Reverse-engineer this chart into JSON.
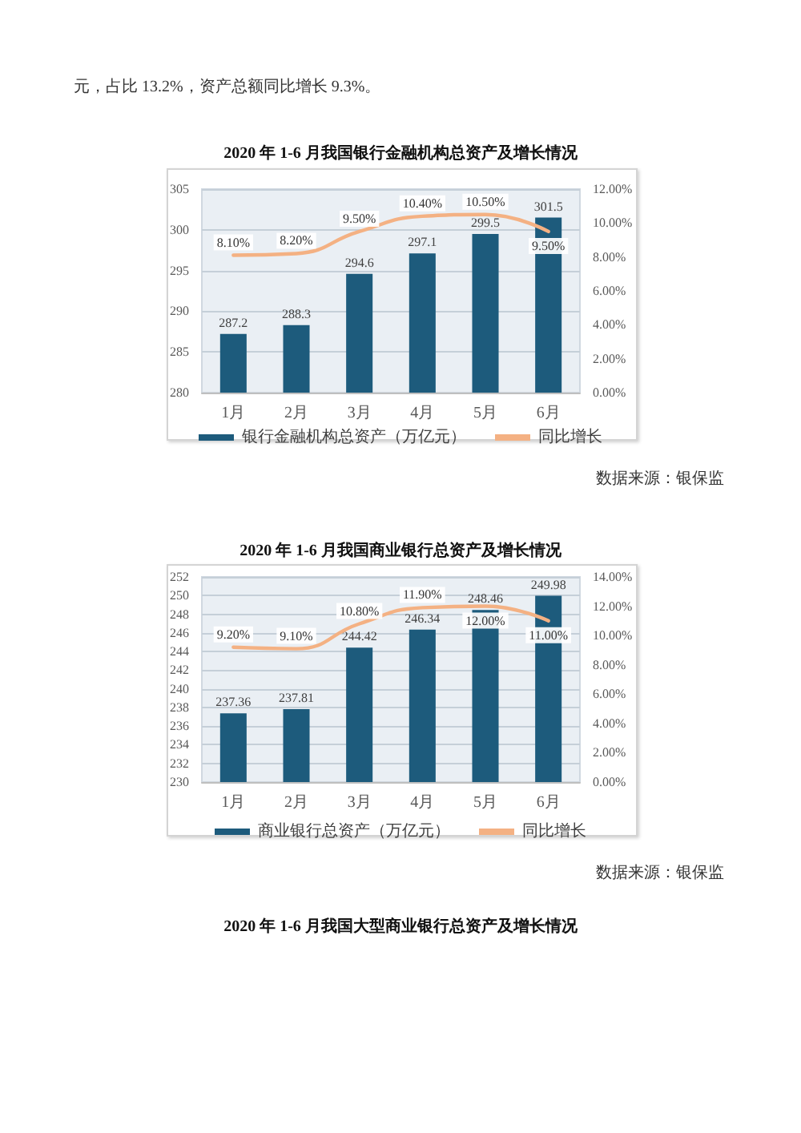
{
  "chart_data": [
    {
      "type": "other",
      "annotations": [
        "元，占比 13.2%，资产总额同比增长 9.3%。"
      ]
    },
    {
      "type": "bar",
      "title": "2020 年 1-6 月我国银行金融机构总资产及增长情况",
      "categories": [
        "1月",
        "2月",
        "3月",
        "4月",
        "5月",
        "6月"
      ],
      "series": [
        {
          "name": "银行金融机构总资产（万亿元）",
          "color": "#1d5b7c",
          "values": [
            287.2,
            288.3,
            294.6,
            297.1,
            299.5,
            301.5
          ],
          "value_labels": [
            "287.2",
            "288.3",
            "294.6",
            "297.1",
            "299.5",
            "301.5"
          ]
        },
        {
          "name": "同比增长",
          "type": "line",
          "axis": "y2",
          "color": "#f4b183",
          "values": [
            8.1,
            8.2,
            9.5,
            10.4,
            10.5,
            9.5
          ],
          "value_labels": [
            "8.10%",
            "8.20%",
            "9.50%",
            "10.40%",
            "10.50%",
            "9.50%"
          ]
        }
      ],
      "ylim": [
        280,
        305
      ],
      "yticks": [
        280,
        285,
        290,
        295,
        300,
        305
      ],
      "y2lim": [
        0,
        12
      ],
      "y2ticks": [
        {
          "value": 0,
          "label": "0.00%"
        },
        {
          "value": 2,
          "label": "2.00%"
        },
        {
          "value": 4,
          "label": "4.00%"
        },
        {
          "value": 6,
          "label": "6.00%"
        },
        {
          "value": 8,
          "label": "8.00%"
        },
        {
          "value": 10,
          "label": "10.00%"
        },
        {
          "value": 12,
          "label": "12.00%"
        }
      ],
      "grid": "y",
      "legend": "bottom",
      "marker": "none",
      "annotations": [
        "数据来源：银保监"
      ]
    },
    {
      "type": "bar",
      "title": "2020 年 1-6 月我国商业银行总资产及增长情况",
      "categories": [
        "1月",
        "2月",
        "3月",
        "4月",
        "5月",
        "6月"
      ],
      "series": [
        {
          "name": "商业银行总资产（万亿元）",
          "color": "#1d5b7c",
          "values": [
            237.36,
            237.81,
            244.42,
            246.34,
            248.46,
            249.98
          ],
          "value_labels": [
            "237.36",
            "237.81",
            "244.42",
            "246.34",
            "248.46",
            "249.98"
          ]
        },
        {
          "name": "同比增长",
          "type": "line",
          "axis": "y2",
          "color": "#f4b183",
          "values": [
            9.2,
            9.1,
            10.8,
            11.9,
            12.0,
            11.0
          ],
          "value_labels": [
            "9.20%",
            "9.10%",
            "10.80%",
            "11.90%",
            "12.00%",
            "11.00%"
          ]
        }
      ],
      "ylim": [
        230,
        252
      ],
      "yticks": [
        230,
        232,
        234,
        236,
        238,
        240,
        242,
        244,
        246,
        248,
        250,
        252
      ],
      "y2lim": [
        0,
        14
      ],
      "y2ticks": [
        {
          "value": 0,
          "label": "0.00%"
        },
        {
          "value": 2,
          "label": "2.00%"
        },
        {
          "value": 4,
          "label": "4.00%"
        },
        {
          "value": 6,
          "label": "6.00%"
        },
        {
          "value": 8,
          "label": "8.00%"
        },
        {
          "value": 10,
          "label": "10.00%"
        },
        {
          "value": 12,
          "label": "12.00%"
        },
        {
          "value": 14,
          "label": "14.00%"
        }
      ],
      "grid": "y",
      "legend": "bottom",
      "marker": "none",
      "annotations": [
        "数据来源：银保监"
      ]
    },
    {
      "type": "other",
      "title": "2020 年 1-6 月我国大型商业银行总资产及增长情况"
    }
  ]
}
